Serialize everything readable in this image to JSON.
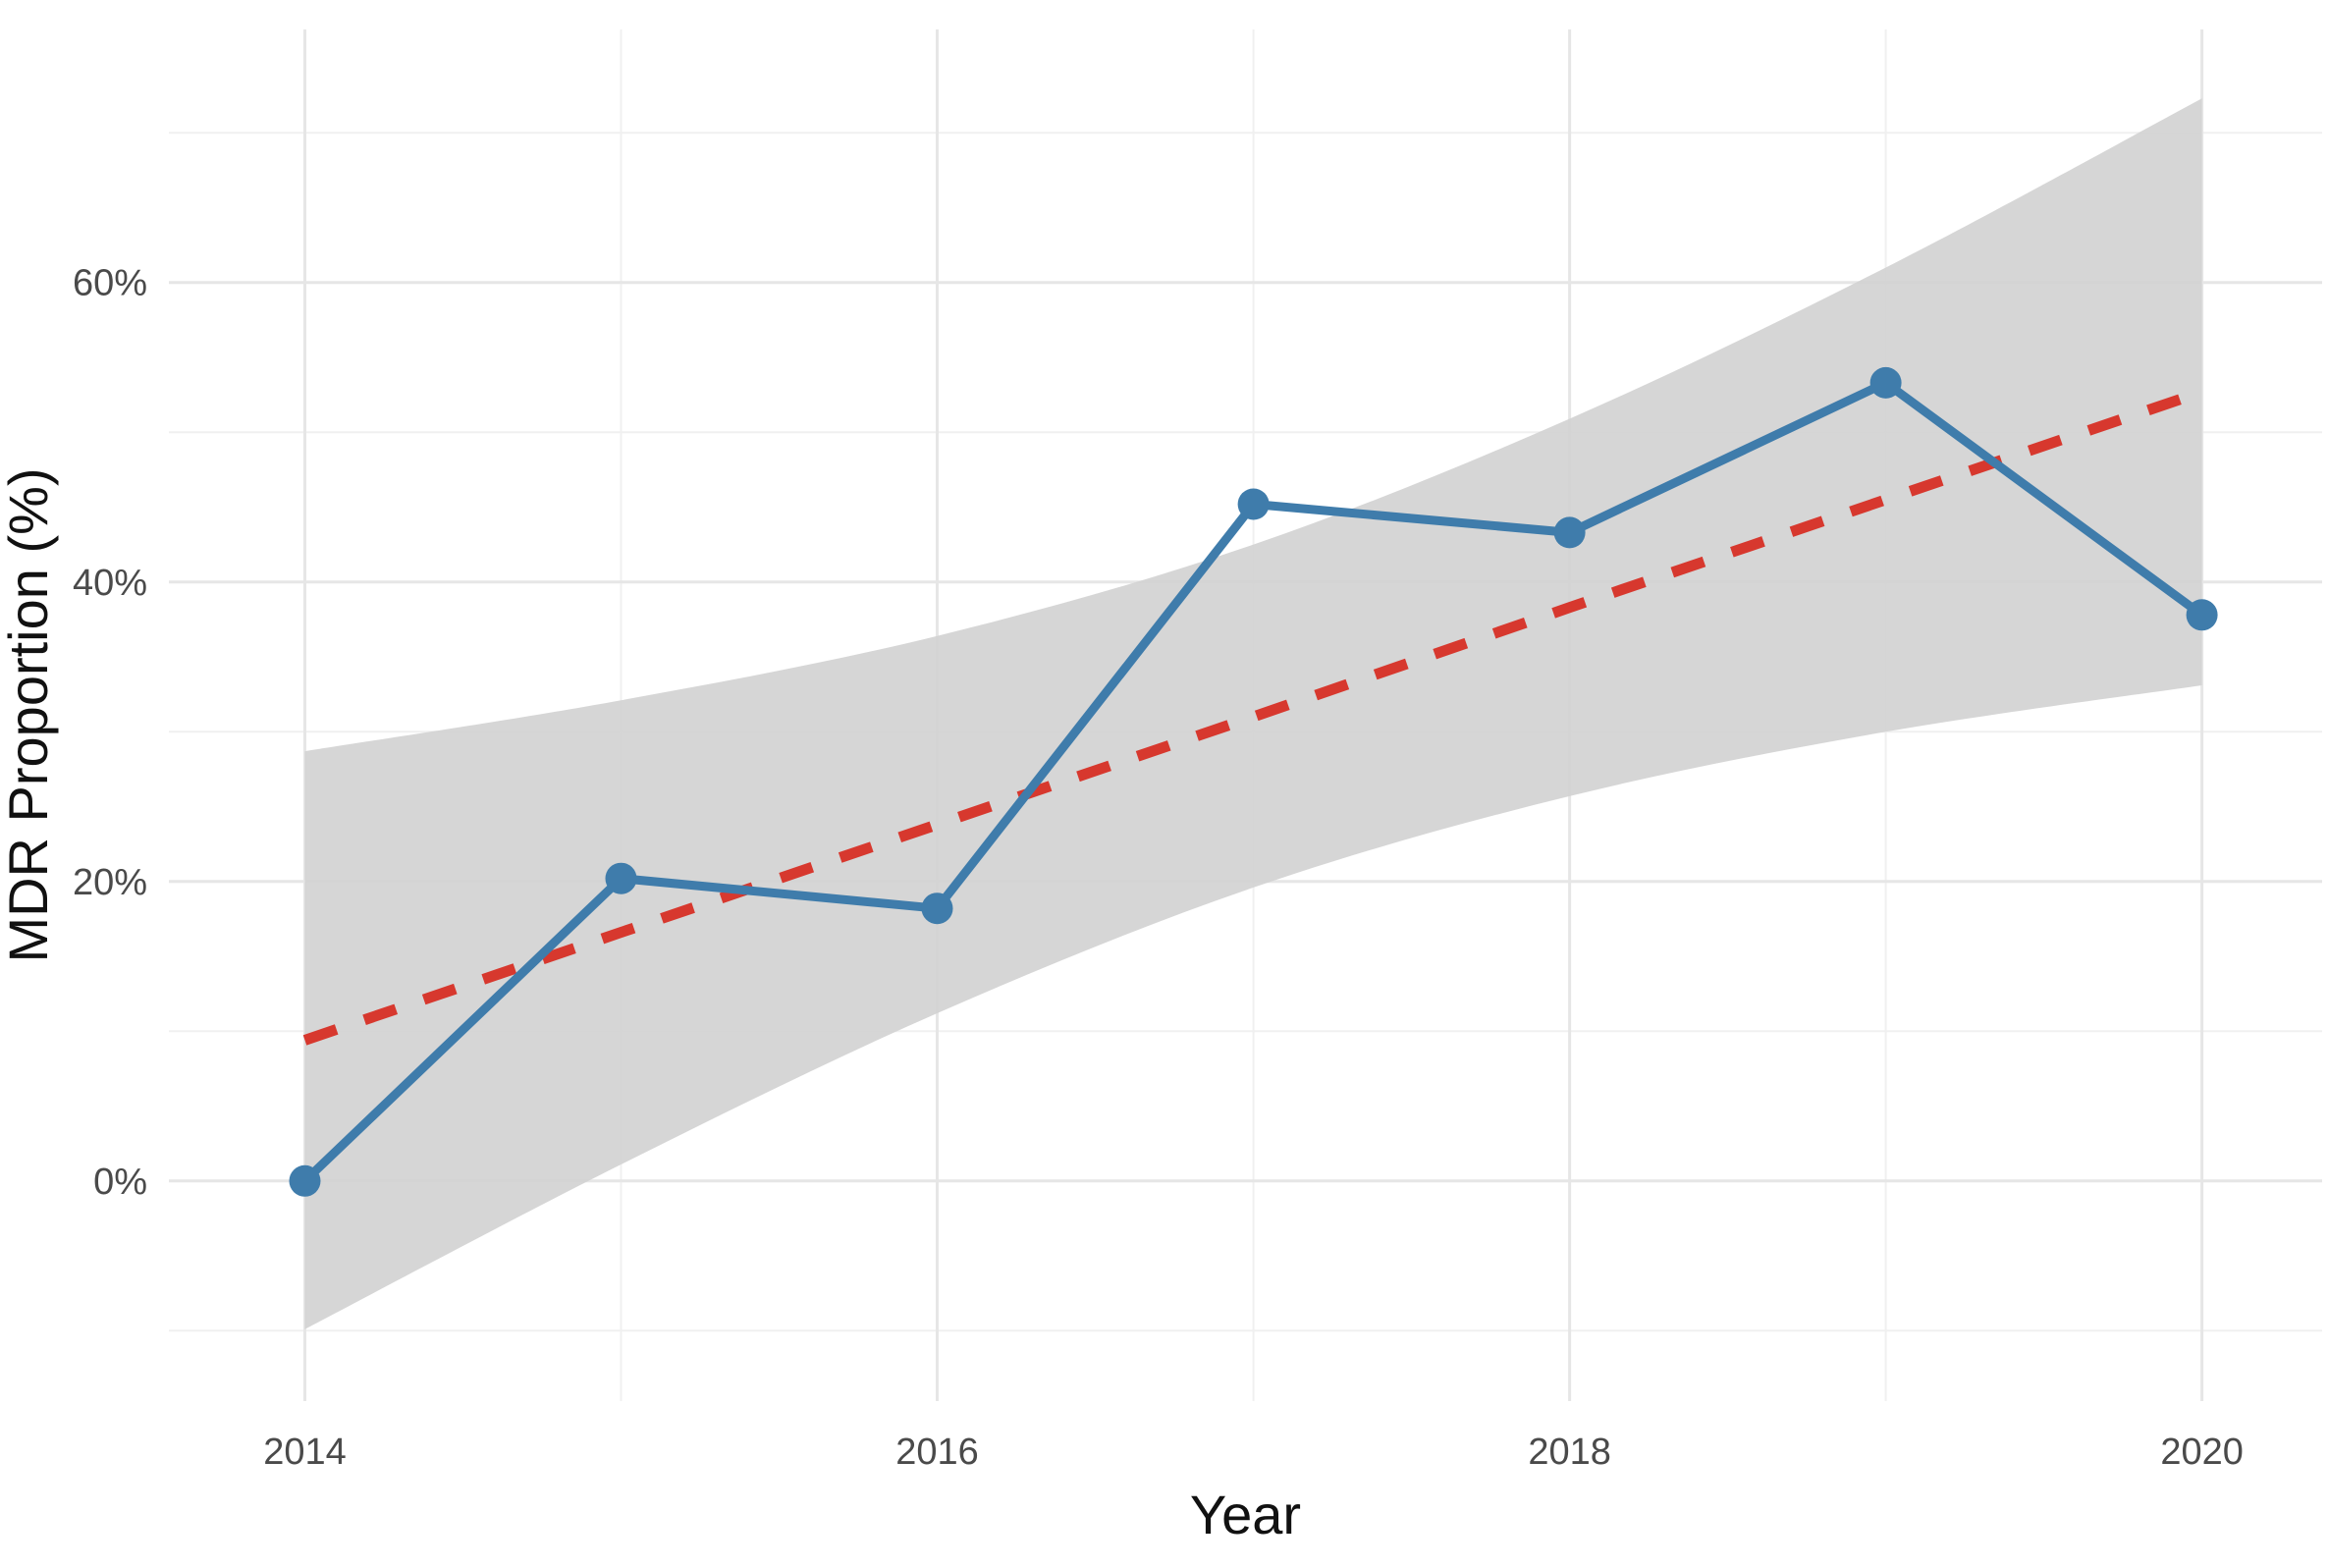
{
  "chart": {
    "x_axis": {
      "label": "Year",
      "major_ticks": [
        {
          "v": 2014,
          "label": "2014"
        },
        {
          "v": 2016,
          "label": "2016"
        },
        {
          "v": 2018,
          "label": "2018"
        },
        {
          "v": 2020,
          "label": "2020"
        }
      ],
      "minor_ticks": [
        2015,
        2017,
        2019
      ]
    },
    "y_axis": {
      "label": "MDR Proportion (%)",
      "major_ticks": [
        {
          "v": 0,
          "label": "0%"
        },
        {
          "v": 20,
          "label": "20%"
        },
        {
          "v": 40,
          "label": "40%"
        },
        {
          "v": 60,
          "label": "60%"
        }
      ],
      "minor_ticks": [
        -10,
        10,
        30,
        50,
        70
      ]
    },
    "colors": {
      "background": "#ffffff",
      "grid_major": "#e6e6e6",
      "grid_minor": "#f0f0f0",
      "series_blue": "#3f7cab",
      "trend_red": "#d7382e",
      "ribbon_gray": "#d3d3d3",
      "tick_text": "#4a4a4a",
      "title_text": "#111111"
    }
  },
  "chart_data": {
    "type": "line",
    "x": [
      2014,
      2015,
      2016,
      2017,
      2018,
      2019,
      2020
    ],
    "series": [
      {
        "name": "observed-mdr-proportion",
        "style": "solid-line-with-points",
        "color": "#3f7cab",
        "values": [
          0.0,
          20.2,
          18.2,
          45.2,
          43.3,
          53.3,
          37.8
        ]
      },
      {
        "name": "linear-trend",
        "style": "dashed-line",
        "color": "#d7382e",
        "values": [
          9.4,
          16.6,
          23.8,
          31.0,
          38.3,
          45.5,
          52.7
        ]
      }
    ],
    "ribbon": {
      "name": "confidence-band",
      "color": "#d3d3d3",
      "upper": [
        28.7,
        32.1,
        36.4,
        42.5,
        50.9,
        61.0,
        72.3
      ],
      "lower": [
        -9.9,
        1.1,
        11.2,
        19.6,
        25.7,
        30.0,
        33.1
      ]
    },
    "xlabel": "Year",
    "ylabel": "MDR Proportion (%)",
    "xlim": [
      2013.57,
      2020.38
    ],
    "ylim": [
      -14.7,
      76.9
    ],
    "grid": "major+minor",
    "legend": "none"
  }
}
